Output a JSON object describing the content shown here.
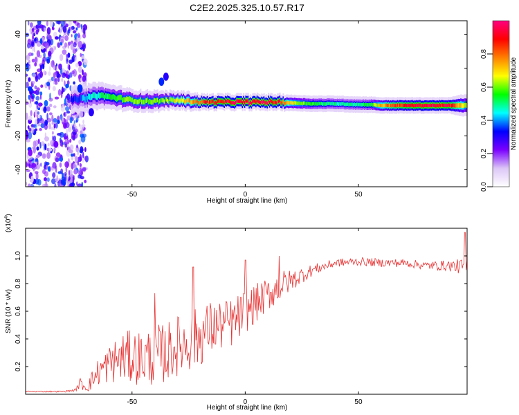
{
  "figure_title": "C2E2.2025.325.10.57.R17",
  "chart_data": [
    {
      "type": "heatmap",
      "title": "C2E2.2025.325.10.57.R17",
      "xlabel": "Height of straight line (km)",
      "ylabel": "Frequency (Hz)",
      "xlim": [
        -97,
        98
      ],
      "ylim": [
        -50,
        48
      ],
      "x_ticks": [
        -50,
        0,
        50
      ],
      "y_ticks": [
        -40,
        -20,
        0,
        20,
        40
      ],
      "x_tick_labels": [
        "-50",
        "0",
        "50"
      ],
      "y_tick_labels": [
        "-40",
        "-20",
        "0",
        "20",
        "40"
      ],
      "colorbar": {
        "label": "Normalized spectral amplitude",
        "range": [
          0,
          1
        ],
        "ticks": [
          0.0,
          0.2,
          0.4,
          0.6,
          0.8
        ],
        "tick_labels": [
          "0.0",
          "0.2",
          "0.4",
          "0.6",
          "0.8"
        ],
        "colors": [
          "#ffffff",
          "#dcc6f7",
          "#7a00ff",
          "#0000ff",
          "#00ffff",
          "#00ff00",
          "#ffff00",
          "#ff8000",
          "#ff0000",
          "#ff0080"
        ]
      },
      "noise_region": {
        "x_start": -97,
        "x_end": -70,
        "amplitude": 0.3
      },
      "ridge": {
        "x": [
          -75,
          -70,
          -65,
          -60,
          -55,
          -50,
          -45,
          -40,
          -35,
          -30,
          -25,
          -20,
          -15,
          -10,
          -5,
          0,
          5,
          10,
          15,
          20,
          30,
          40,
          50,
          55,
          60,
          65,
          70,
          75,
          80,
          85,
          90,
          95,
          98
        ],
        "frequency": [
          1.5,
          2.5,
          4.0,
          3.0,
          2.0,
          1.0,
          0.5,
          0.5,
          1.0,
          1.0,
          0.5,
          0.0,
          0.0,
          0.0,
          0.0,
          0.0,
          0.0,
          0.0,
          0.0,
          -0.5,
          -1.0,
          -1.0,
          -1.5,
          -1.5,
          -2.0,
          -2.0,
          -2.0,
          -2.0,
          -2.0,
          -2.0,
          -2.0,
          -2.0,
          -2.0
        ],
        "amplitude": [
          0.35,
          0.45,
          0.5,
          0.55,
          0.6,
          0.62,
          0.62,
          0.6,
          0.62,
          0.7,
          0.75,
          0.85,
          0.9,
          0.92,
          0.95,
          0.97,
          0.97,
          0.95,
          0.9,
          0.7,
          0.55,
          0.5,
          0.5,
          0.55,
          0.75,
          0.85,
          0.9,
          0.92,
          0.95,
          0.95,
          0.92,
          0.75,
          0.6
        ],
        "width_hz": [
          5,
          5,
          5,
          4.5,
          4.5,
          4,
          4,
          4,
          3.5,
          3.5,
          3.5,
          3,
          3,
          3,
          3,
          3,
          3,
          3,
          3,
          3,
          3,
          3,
          3,
          3,
          3,
          3,
          3,
          3,
          3,
          3,
          3,
          4,
          4
        ]
      },
      "outlier_patches": [
        {
          "x": -37,
          "frequency": 12,
          "amplitude": 0.35
        },
        {
          "x": -35,
          "frequency": 15,
          "amplitude": 0.3
        },
        {
          "x": -73,
          "frequency": 8,
          "amplitude": 0.35
        },
        {
          "x": -68,
          "frequency": -6,
          "amplitude": 0.3
        }
      ]
    },
    {
      "type": "line",
      "xlabel": "Height of straight line (km)",
      "ylabel": "SNR (10 * v/v)",
      "multiplier_label": "(x10",
      "multiplier_exponent": "4",
      "multiplier_suffix": ")",
      "xlim": [
        -97,
        98
      ],
      "ylim": [
        0,
        1.2
      ],
      "x_ticks": [
        -50,
        0,
        50
      ],
      "y_ticks": [
        0.2,
        0.4,
        0.6,
        0.8,
        1.0
      ],
      "x_tick_labels": [
        "-50",
        "0",
        "50"
      ],
      "y_tick_labels": [
        "0.2",
        "0.4",
        "0.6",
        "0.8",
        "1.0"
      ],
      "line_color": "#e83232",
      "series": [
        {
          "name": "SNR",
          "trend_x": [
            -97,
            -80,
            -75,
            -73,
            -70,
            -65,
            -60,
            -55,
            -50,
            -45,
            -40,
            -35,
            -30,
            -25,
            -20,
            -15,
            -10,
            -5,
            0,
            5,
            10,
            15,
            20,
            25,
            30,
            40,
            50,
            60,
            70,
            80,
            90,
            97
          ],
          "trend_y": [
            0.02,
            0.02,
            0.03,
            0.08,
            0.05,
            0.16,
            0.22,
            0.26,
            0.27,
            0.26,
            0.28,
            0.3,
            0.35,
            0.38,
            0.42,
            0.48,
            0.5,
            0.52,
            0.6,
            0.66,
            0.72,
            0.78,
            0.82,
            0.86,
            0.9,
            0.95,
            0.96,
            0.95,
            0.95,
            0.93,
            0.93,
            0.92
          ],
          "noise_amp": [
            0.005,
            0.005,
            0.01,
            0.04,
            0.04,
            0.1,
            0.14,
            0.18,
            0.2,
            0.2,
            0.22,
            0.22,
            0.22,
            0.22,
            0.22,
            0.2,
            0.18,
            0.18,
            0.16,
            0.14,
            0.12,
            0.12,
            0.08,
            0.06,
            0.04,
            0.03,
            0.03,
            0.03,
            0.03,
            0.03,
            0.04,
            0.06
          ],
          "peaks": [
            {
              "x": -40,
              "y": 0.73
            },
            {
              "x": -23,
              "y": 0.92
            },
            {
              "x": 0,
              "y": 0.97
            },
            {
              "x": 15,
              "y": 1.0
            },
            {
              "x": 97,
              "y": 1.17
            }
          ]
        }
      ]
    }
  ]
}
